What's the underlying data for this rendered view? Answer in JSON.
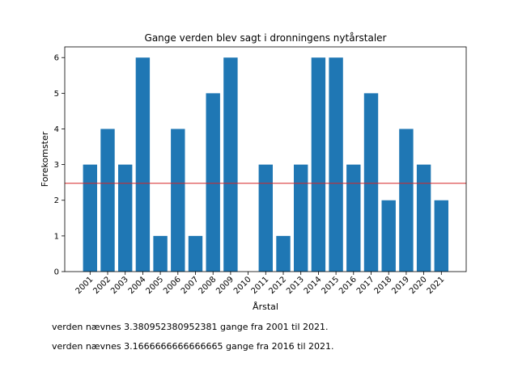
{
  "chart_data": {
    "type": "bar",
    "title": "Gange verden blev sagt i dronningens nytårstaler",
    "xlabel": "Årstal",
    "ylabel": "Forekomster",
    "categories": [
      "2001",
      "2002",
      "2003",
      "2004",
      "2005",
      "2006",
      "2007",
      "2008",
      "2009",
      "2010",
      "2011",
      "2012",
      "2013",
      "2014",
      "2015",
      "2016",
      "2017",
      "2018",
      "2019",
      "2020",
      "2021"
    ],
    "values": [
      3,
      4,
      3,
      6,
      1,
      4,
      1,
      5,
      6,
      0,
      3,
      1,
      3,
      6,
      6,
      3,
      5,
      2,
      4,
      3,
      2
    ],
    "ylim": [
      0,
      6.3
    ],
    "yticks": [
      0,
      1,
      2,
      3,
      4,
      5,
      6
    ],
    "reference_line": 2.476,
    "bar_color": "#1f77b4",
    "line_color": "#d62728",
    "grid": false,
    "legend": "none"
  },
  "notes": [
    "verden nævnes 3.380952380952381 gange fra 2001 til 2021.",
    "verden nævnes 3.1666666666666665 gange fra 2016 til 2021."
  ]
}
